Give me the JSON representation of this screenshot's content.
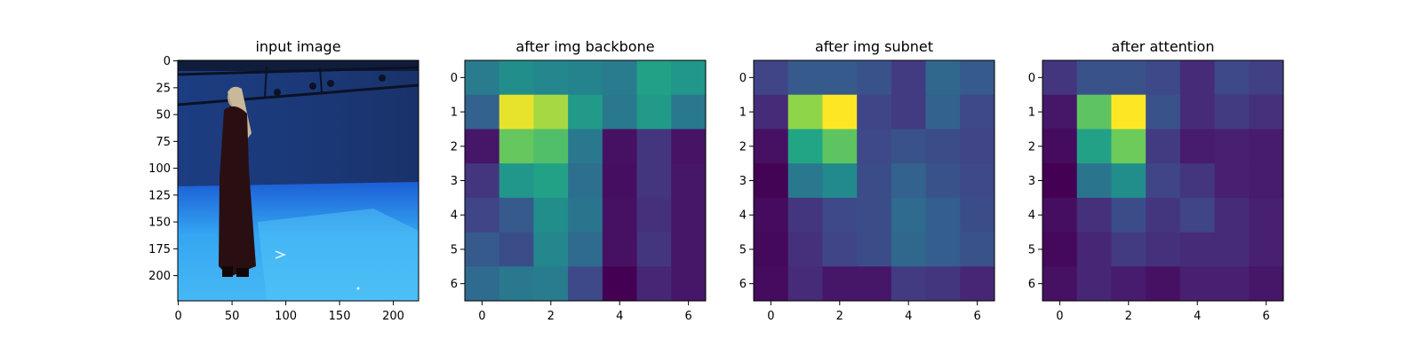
{
  "chart_data": [
    {
      "type": "image",
      "title": "input image",
      "xticks": [
        "0",
        "50",
        "100",
        "150",
        "200"
      ],
      "yticks": [
        "0",
        "25",
        "50",
        "75",
        "100",
        "125",
        "150",
        "175",
        "200"
      ],
      "xlim": [
        0,
        224
      ],
      "ylim": [
        224,
        0
      ]
    },
    {
      "type": "heatmap",
      "title": "after img backbone",
      "xticks": [
        "0",
        "2",
        "4",
        "6"
      ],
      "yticks": [
        "0",
        "1",
        "2",
        "3",
        "4",
        "5",
        "6"
      ],
      "colormap": "viridis",
      "values": [
        [
          0.52,
          0.62,
          0.58,
          0.56,
          0.52,
          0.72,
          0.66
        ],
        [
          0.4,
          0.98,
          0.92,
          0.68,
          0.5,
          0.68,
          0.5
        ],
        [
          0.08,
          0.85,
          0.82,
          0.5,
          0.06,
          0.2,
          0.07
        ],
        [
          0.2,
          0.66,
          0.72,
          0.46,
          0.05,
          0.2,
          0.08
        ],
        [
          0.26,
          0.36,
          0.62,
          0.48,
          0.06,
          0.18,
          0.08
        ],
        [
          0.36,
          0.3,
          0.58,
          0.44,
          0.06,
          0.2,
          0.08
        ],
        [
          0.44,
          0.5,
          0.52,
          0.28,
          0.0,
          0.14,
          0.08
        ]
      ]
    },
    {
      "type": "heatmap",
      "title": "after img subnet",
      "xticks": [
        "0",
        "2",
        "4",
        "6"
      ],
      "yticks": [
        "0",
        "1",
        "2",
        "3",
        "4",
        "5",
        "6"
      ],
      "colormap": "viridis",
      "values": [
        [
          0.26,
          0.36,
          0.36,
          0.32,
          0.22,
          0.42,
          0.36
        ],
        [
          0.16,
          0.9,
          1.0,
          0.26,
          0.22,
          0.4,
          0.28
        ],
        [
          0.06,
          0.74,
          0.84,
          0.28,
          0.32,
          0.3,
          0.26
        ],
        [
          0.01,
          0.5,
          0.6,
          0.3,
          0.4,
          0.32,
          0.28
        ],
        [
          0.04,
          0.2,
          0.28,
          0.3,
          0.44,
          0.38,
          0.3
        ],
        [
          0.03,
          0.18,
          0.26,
          0.3,
          0.42,
          0.38,
          0.32
        ],
        [
          0.04,
          0.16,
          0.08,
          0.08,
          0.22,
          0.2,
          0.14
        ]
      ]
    },
    {
      "type": "heatmap",
      "title": "after attention",
      "xticks": [
        "0",
        "2",
        "4",
        "6"
      ],
      "yticks": [
        "0",
        "1",
        "2",
        "3",
        "4",
        "5",
        "6"
      ],
      "colormap": "viridis",
      "values": [
        [
          0.2,
          0.32,
          0.32,
          0.28,
          0.16,
          0.28,
          0.24
        ],
        [
          0.08,
          0.84,
          1.0,
          0.32,
          0.16,
          0.22,
          0.18
        ],
        [
          0.04,
          0.72,
          0.86,
          0.22,
          0.1,
          0.12,
          0.1
        ],
        [
          0.0,
          0.48,
          0.62,
          0.26,
          0.2,
          0.12,
          0.1
        ],
        [
          0.05,
          0.18,
          0.3,
          0.2,
          0.26,
          0.16,
          0.12
        ],
        [
          0.03,
          0.14,
          0.22,
          0.18,
          0.16,
          0.16,
          0.12
        ],
        [
          0.06,
          0.14,
          0.1,
          0.06,
          0.12,
          0.12,
          0.08
        ]
      ]
    }
  ]
}
